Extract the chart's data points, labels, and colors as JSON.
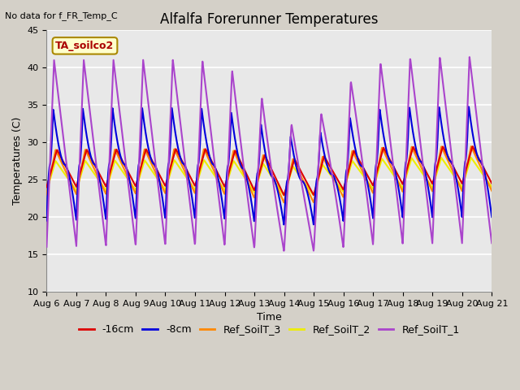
{
  "title": "Alfalfa Forerunner Temperatures",
  "xlabel": "Time",
  "ylabel": "Temperatures (C)",
  "no_data_text": "No data for f_FR_Temp_C",
  "annotation_text": "TA_soilco2",
  "ylim": [
    10,
    45
  ],
  "yticks": [
    10,
    15,
    20,
    25,
    30,
    35,
    40,
    45
  ],
  "x_tick_labels": [
    "Aug 6",
    "Aug 7",
    "Aug 8",
    "Aug 9",
    "Aug 10",
    "Aug 11",
    "Aug 12",
    "Aug 13",
    "Aug 14",
    "Aug 15",
    "Aug 16",
    "Aug 17",
    "Aug 18",
    "Aug 19",
    "Aug 20",
    "Aug 21"
  ],
  "series": [
    {
      "label": "-16cm",
      "color": "#dd0000",
      "lw": 1.5
    },
    {
      "label": "-8cm",
      "color": "#0000dd",
      "lw": 1.5
    },
    {
      "label": "Ref_SoilT_3",
      "color": "#ff8800",
      "lw": 1.5
    },
    {
      "label": "Ref_SoilT_2",
      "color": "#eeee00",
      "lw": 1.5
    },
    {
      "label": "Ref_SoilT_1",
      "color": "#aa44cc",
      "lw": 1.5
    }
  ],
  "bg_color": "#d4d0c8",
  "plot_bg": "#e8e8e8",
  "grid_color": "#ffffff",
  "annotation_bg": "#ffffcc",
  "annotation_border": "#aa8800",
  "annotation_text_color": "#aa0000",
  "title_fontsize": 12,
  "label_fontsize": 9,
  "tick_fontsize": 8,
  "legend_fontsize": 9
}
